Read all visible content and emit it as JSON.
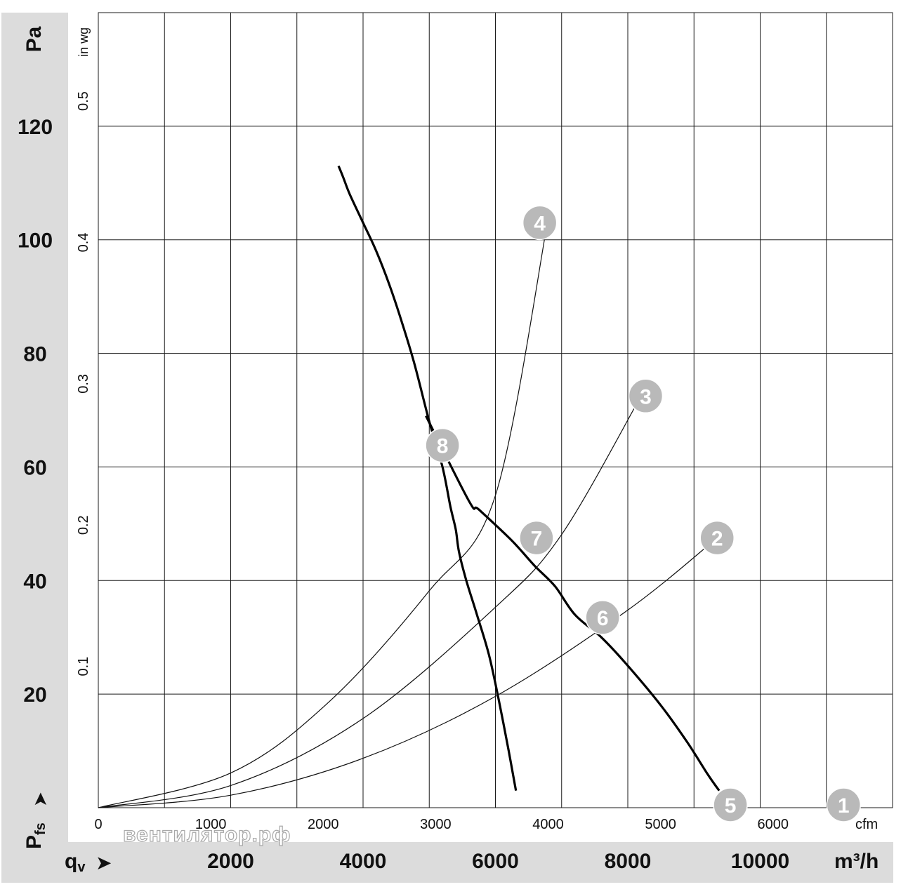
{
  "chart_data": {
    "type": "line",
    "title": "",
    "watermark": "вентилятор.рф",
    "y_axis": {
      "label": "Pfs",
      "label_main": "P",
      "label_sub": "fs",
      "unit": "Pa",
      "range": [
        0,
        140
      ],
      "ticks": [
        20,
        40,
        60,
        80,
        100,
        120
      ],
      "arrow": "➤"
    },
    "y_axis_secondary": {
      "unit": "in wg",
      "ticks": [
        "0.1",
        "0.2",
        "0.3",
        "0.4",
        "0.5"
      ],
      "tick_values": [
        0.1,
        0.2,
        0.3,
        0.4,
        0.5
      ]
    },
    "x_axis": {
      "label": "qv",
      "label_main": "q",
      "label_sub": "v",
      "unit": "m³/h",
      "range": [
        0,
        12000
      ],
      "ticks": [
        "2000",
        "4000",
        "6000",
        "8000",
        "10000"
      ],
      "tick_values": [
        2000,
        4000,
        6000,
        8000,
        10000
      ],
      "arrow": "➤"
    },
    "x_axis_secondary": {
      "unit": "cfm",
      "ticks": [
        "0",
        "1000",
        "2000",
        "3000",
        "4000",
        "5000",
        "6000"
      ],
      "tick_values": [
        0,
        1000,
        2000,
        3000,
        4000,
        5000,
        6000
      ]
    },
    "grid": true,
    "series": [
      {
        "style": "thick",
        "x": [
          6310,
          6200,
          6050,
          5900,
          5720,
          5560,
          5450,
          5400,
          5320,
          5200,
          5000,
          4780,
          4600,
          4400,
          4200,
          4000,
          3800,
          3700,
          3630
        ],
        "y": [
          3,
          10,
          19,
          27,
          34,
          40,
          45,
          49,
          53,
          60,
          68,
          78,
          85,
          92,
          98,
          103,
          108,
          111,
          113
        ]
      },
      {
        "style": "thick",
        "x": [
          9380,
          9200,
          8900,
          8500,
          8000,
          7600,
          7200,
          6900,
          6600,
          6250,
          5750,
          5600,
          4950
        ],
        "y": [
          3,
          6,
          11.5,
          18,
          25,
          30,
          34,
          39,
          42.5,
          47,
          52.5,
          54,
          69
        ]
      },
      {
        "style": "thin",
        "x": [
          0,
          2000,
          4000,
          6000,
          8000,
          9350
        ],
        "y": [
          0,
          2.2,
          8.7,
          19.6,
          34.8,
          47.5
        ]
      },
      {
        "style": "thin",
        "x": [
          0,
          2000,
          4000,
          6000,
          7000,
          8200
        ],
        "y": [
          0,
          3.9,
          15.7,
          35.3,
          48.1,
          72.5
        ]
      },
      {
        "style": "thin",
        "x": [
          0,
          2000,
          3500,
          5000,
          6000,
          6800
        ],
        "y": [
          0,
          6.1,
          18.8,
          38.2,
          55,
          104
        ]
      }
    ],
    "markers": [
      {
        "label": "1",
        "x": 11260,
        "y": 0.5
      },
      {
        "label": "2",
        "x": 9350,
        "y": 47.5
      },
      {
        "label": "3",
        "x": 8270,
        "y": 72.5
      },
      {
        "label": "4",
        "x": 6670,
        "y": 103
      },
      {
        "label": "5",
        "x": 9550,
        "y": 0.5
      },
      {
        "label": "6",
        "x": 7620,
        "y": 33.5
      },
      {
        "label": "7",
        "x": 6620,
        "y": 47.5
      },
      {
        "label": "8",
        "x": 5200,
        "y": 63.8
      }
    ]
  }
}
